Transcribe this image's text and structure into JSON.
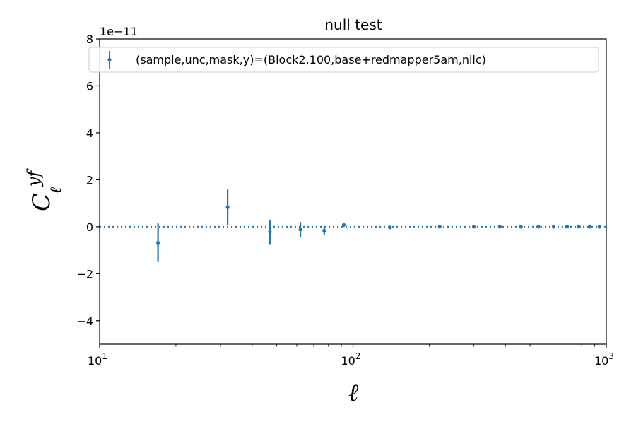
{
  "chart_data": {
    "type": "scatter",
    "title": "null test",
    "xlabel": "ℓ",
    "ylabel": {
      "base": "C",
      "sup": "yf",
      "sub": "ℓ"
    },
    "xscale": "log",
    "xlim": [
      10,
      1000
    ],
    "ylim": [
      -5,
      8
    ],
    "y_multiplier": "1e−11",
    "yticks": [
      -4,
      -2,
      0,
      2,
      4,
      6,
      8
    ],
    "yticklabels": [
      "−4",
      "−2",
      "0",
      "2",
      "4",
      "6",
      "8"
    ],
    "xticks": [
      10,
      100,
      1000
    ],
    "xticklabels": [
      {
        "base": "10",
        "exp": "1"
      },
      {
        "base": "10",
        "exp": "2"
      },
      {
        "base": "10",
        "exp": "3"
      }
    ],
    "reference_line": {
      "y": 0,
      "style": "dotted"
    },
    "legend_position": "top-left",
    "color": "#1f77b4",
    "series": [
      {
        "name": "(sample,unc,mask,y)=(Block2,100,base+redmapper5am,nilc)",
        "x": [
          17,
          32,
          47,
          62,
          77,
          92,
          140,
          220,
          300,
          380,
          460,
          540,
          620,
          700,
          780,
          860,
          940
        ],
        "y": [
          -0.68,
          0.83,
          -0.22,
          -0.12,
          -0.17,
          0.08,
          -0.03,
          0.0,
          0.0,
          0.0,
          0.0,
          0.0,
          0.0,
          0.0,
          0.0,
          0.0,
          0.0
        ],
        "yerr": [
          0.82,
          0.75,
          0.52,
          0.32,
          0.16,
          0.09,
          0.03,
          0.02,
          0.02,
          0.01,
          0.01,
          0.01,
          0.01,
          0.01,
          0.01,
          0.01,
          0.01
        ]
      }
    ]
  }
}
